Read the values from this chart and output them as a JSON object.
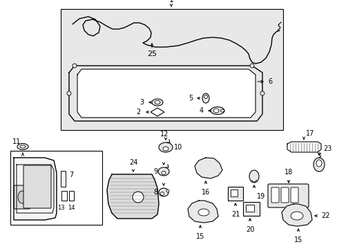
{
  "bg_color": "#ffffff",
  "line_color": "#000000",
  "gray_bg": "#e8e8e8",
  "fs": 7,
  "fig_w": 4.89,
  "fig_h": 3.6,
  "dpi": 100
}
